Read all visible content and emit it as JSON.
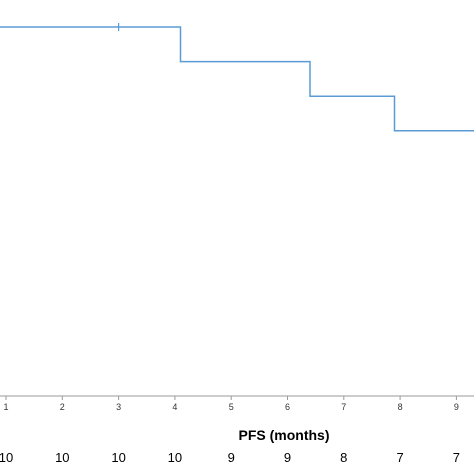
{
  "chart_data": {
    "type": "line",
    "title": "",
    "xlabel": "PFS (months)",
    "ylabel": "",
    "xlim": [
      0.5,
      9.4
    ],
    "ylim": [
      0,
      1.0
    ],
    "x_ticks": [
      "1",
      "2",
      "3",
      "4",
      "5",
      "6",
      "7",
      "8",
      "9"
    ],
    "series": [
      {
        "color": "#5b9bd5",
        "steps": [
          {
            "x": 0.5,
            "y": 1.0
          },
          {
            "x": 4.1,
            "y": 1.0
          },
          {
            "x": 4.1,
            "y": 0.9
          },
          {
            "x": 6.4,
            "y": 0.9
          },
          {
            "x": 6.4,
            "y": 0.8
          },
          {
            "x": 7.9,
            "y": 0.8
          },
          {
            "x": 7.9,
            "y": 0.7
          },
          {
            "x": 9.4,
            "y": 0.7
          }
        ],
        "censored": [
          {
            "x": 3.0,
            "y": 1.0
          }
        ]
      }
    ],
    "risk_table": {
      "values": [
        "10",
        "10",
        "10",
        "10",
        "9",
        "9",
        "8",
        "7",
        "7"
      ]
    }
  }
}
